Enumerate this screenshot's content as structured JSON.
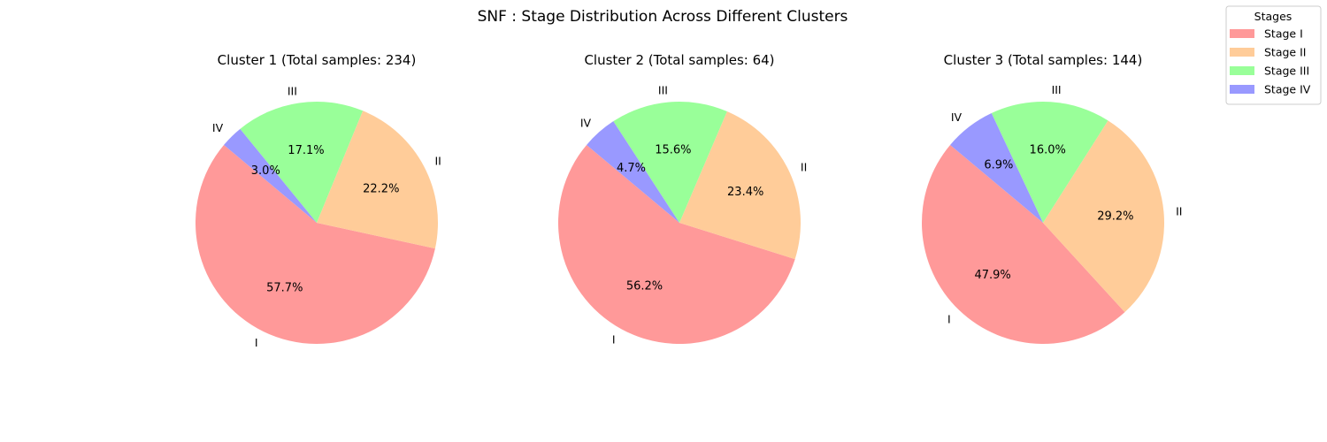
{
  "figure": {
    "title": "SNF : Stage Distribution Across Different Clusters"
  },
  "legend": {
    "title": "Stages",
    "placement": "top-right",
    "entries": [
      {
        "label": "Stage I",
        "color": "#ff9999"
      },
      {
        "label": "Stage II",
        "color": "#ffcc99"
      },
      {
        "label": "Stage III",
        "color": "#99ff99"
      },
      {
        "label": "Stage IV",
        "color": "#9999ff"
      }
    ]
  },
  "chart_data": [
    {
      "type": "pie",
      "title": "Cluster 1 (Total samples: 234)",
      "labels": [
        "I",
        "II",
        "III",
        "IV"
      ],
      "values": [
        57.7,
        22.2,
        17.1,
        3.0
      ],
      "value_labels": [
        "57.7%",
        "22.2%",
        "17.1%",
        "3.0%"
      ],
      "colors": [
        "#ff9999",
        "#ffcc99",
        "#99ff99",
        "#9999ff"
      ]
    },
    {
      "type": "pie",
      "title": "Cluster 2 (Total samples: 64)",
      "labels": [
        "I",
        "II",
        "III",
        "IV"
      ],
      "values": [
        56.2,
        23.4,
        15.6,
        4.7
      ],
      "value_labels": [
        "56.2%",
        "23.4%",
        "15.6%",
        "4.7%"
      ],
      "colors": [
        "#ff9999",
        "#ffcc99",
        "#99ff99",
        "#9999ff"
      ]
    },
    {
      "type": "pie",
      "title": "Cluster 3 (Total samples: 144)",
      "labels": [
        "I",
        "II",
        "III",
        "IV"
      ],
      "values": [
        47.9,
        29.2,
        16.0,
        6.9
      ],
      "value_labels": [
        "47.9%",
        "29.2%",
        "16.0%",
        "6.9%"
      ],
      "colors": [
        "#ff9999",
        "#ffcc99",
        "#99ff99",
        "#9999ff"
      ]
    }
  ]
}
